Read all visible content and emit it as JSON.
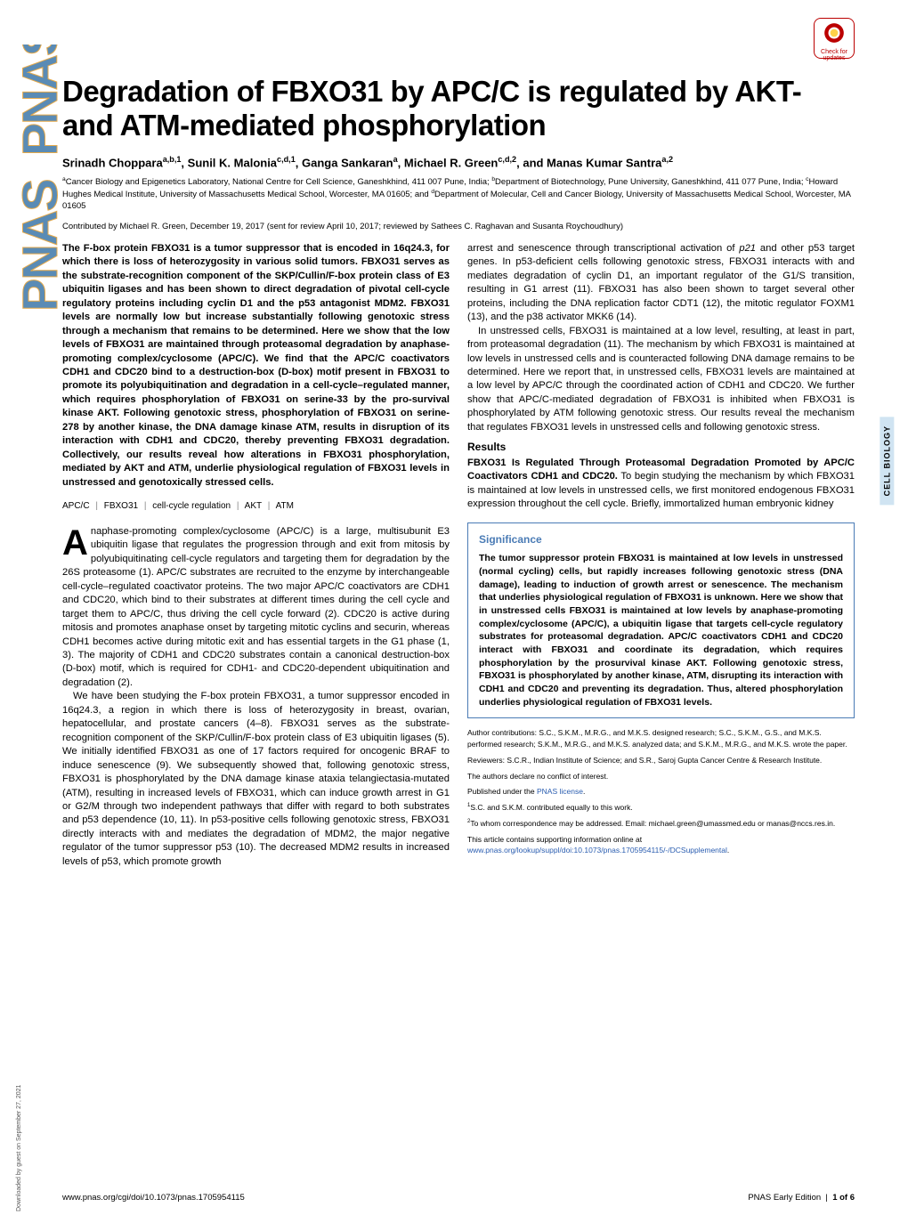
{
  "badge": {
    "line1": "Check for",
    "line2": "updates"
  },
  "title": "Degradation of FBXO31 by APC/C is regulated by AKT- and ATM-mediated phosphorylation",
  "authors_html": "Srinadh Choppara<sup>a,b,1</sup>, Sunil K. Malonia<sup>c,d,1</sup>, Ganga Sankaran<sup>a</sup>, Michael R. Green<sup>c,d,2</sup>, and Manas Kumar Santra<sup>a,2</sup>",
  "affil": "<sup>a</sup>Cancer Biology and Epigenetics Laboratory, National Centre for Cell Science, Ganeshkhind, 411 007 Pune, India; <sup>b</sup>Department of Biotechnology, Pune University, Ganeshkhind, 411 077 Pune, India; <sup>c</sup>Howard Hughes Medical Institute, University of Massachusetts Medical School, Worcester, MA 01605; and <sup>d</sup>Department of Molecular, Cell and Cancer Biology, University of Massachusetts Medical School, Worcester, MA 01605",
  "contrib": "Contributed by Michael R. Green, December 19, 2017 (sent for review April 10, 2017; reviewed by Sathees C. Raghavan and Susanta Roychoudhury)",
  "abstract": "The F-box protein FBXO31 is a tumor suppressor that is encoded in 16q24.3, for which there is loss of heterozygosity in various solid tumors. FBXO31 serves as the substrate-recognition component of the SKP/Cullin/F-box protein class of E3 ubiquitin ligases and has been shown to direct degradation of pivotal cell-cycle regulatory proteins including cyclin D1 and the p53 antagonist MDM2. FBXO31 levels are normally low but increase substantially following genotoxic stress through a mechanism that remains to be determined. Here we show that the low levels of FBXO31 are maintained through proteasomal degradation by anaphase-promoting complex/cyclosome (APC/C). We find that the APC/C coactivators CDH1 and CDC20 bind to a destruction-box (D-box) motif present in FBXO31 to promote its polyubiquitination and degradation in a cell-cycle–regulated manner, which requires phosphorylation of FBXO31 on serine-33 by the pro-survival kinase AKT. Following genotoxic stress, phosphorylation of FBXO31 on serine-278 by another kinase, the DNA damage kinase ATM, results in disruption of its interaction with CDH1 and CDC20, thereby preventing FBXO31 degradation. Collectively, our results reveal how alterations in FBXO31 phosphorylation, mediated by AKT and ATM, underlie physiological regulation of FBXO31 levels in unstressed and genotoxically stressed cells.",
  "keywords": [
    "APC/C",
    "FBXO31",
    "cell-cycle regulation",
    "AKT",
    "ATM"
  ],
  "left_body": [
    "naphase-promoting complex/cyclosome (APC/C) is a large, multisubunit E3 ubiquitin ligase that regulates the progression through and exit from mitosis by polyubiquitinating cell-cycle regulators and targeting them for degradation by the 26S proteasome (1). APC/C substrates are recruited to the enzyme by interchangeable cell-cycle–regulated coactivator proteins. The two major APC/C coactivators are CDH1 and CDC20, which bind to their substrates at different times during the cell cycle and target them to APC/C, thus driving the cell cycle forward (2). CDC20 is active during mitosis and promotes anaphase onset by targeting mitotic cyclins and securin, whereas CDH1 becomes active during mitotic exit and has essential targets in the G1 phase (1, 3). The majority of CDH1 and CDC20 substrates contain a canonical destruction-box (D-box) motif, which is required for CDH1- and CDC20-dependent ubiquitination and degradation (2).",
    "We have been studying the F-box protein FBXO31, a tumor suppressor encoded in 16q24.3, a region in which there is loss of heterozygosity in breast, ovarian, hepatocellular, and prostate cancers (4–8). FBXO31 serves as the substrate-recognition component of the SKP/Cullin/F-box protein class of E3 ubiquitin ligases (5). We initially identified FBXO31 as one of 17 factors required for oncogenic BRAF to induce senescence (9). We subsequently showed that, following genotoxic stress, FBXO31 is phosphorylated by the DNA damage kinase ataxia telangiectasia-mutated (ATM), resulting in increased levels of FBXO31, which can induce growth arrest in G1 or G2/M through two independent pathways that differ with regard to both substrates and p53 dependence (10, 11). In p53-positive cells following genotoxic stress, FBXO31 directly interacts with and mediates the degradation of MDM2, the major negative regulator of the tumor suppressor p53 (10). The decreased MDM2 results in increased levels of p53, which promote growth"
  ],
  "right_body_top": [
    "arrest and senescence through transcriptional activation of <i>p21</i> and other p53 target genes. In p53-deficient cells following genotoxic stress, FBXO31 interacts with and mediates degradation of cyclin D1, an important regulator of the G1/S transition, resulting in G1 arrest (11). FBXO31 has also been shown to target several other proteins, including the DNA replication factor CDT1 (12), the mitotic regulator FOXM1 (13), and the p38 activator MKK6 (14).",
    "In unstressed cells, FBXO31 is maintained at a low level, resulting, at least in part, from proteasomal degradation (11). The mechanism by which FBXO31 is maintained at low levels in unstressed cells and is counteracted following DNA damage remains to be determined. Here we report that, in unstressed cells, FBXO31 levels are maintained at a low level by APC/C through the coordinated action of CDH1 and CDC20. We further show that APC/C-mediated degradation of FBXO31 is inhibited when FBXO31 is phosphorylated by ATM following genotoxic stress. Our results reveal the mechanism that regulates FBXO31 levels in unstressed cells and following genotoxic stress."
  ],
  "results_heading": "Results",
  "results_sub": "FBXO31 Is Regulated Through Proteasomal Degradation Promoted by APC/C Coactivators CDH1 and CDC20.",
  "results_text": " To begin studying the mechanism by which FBXO31 is maintained at low levels in unstressed cells, we first monitored endogenous FBXO31 expression throughout the cell cycle. Briefly, immortalized human embryonic kidney",
  "sig_heading": "Significance",
  "sig_body": "The tumor suppressor protein FBXO31 is maintained at low levels in unstressed (normal cycling) cells, but rapidly increases following genotoxic stress (DNA damage), leading to induction of growth arrest or senescence. The mechanism that underlies physiological regulation of FBXO31 is unknown. Here we show that in unstressed cells FBXO31 is maintained at low levels by anaphase-promoting complex/cyclosome (APC/C), a ubiquitin ligase that targets cell-cycle regulatory substrates for proteasomal degradation. APC/C coactivators CDH1 and CDC20 interact with FBXO31 and coordinate its degradation, which requires phosphorylation by the prosurvival kinase AKT. Following genotoxic stress, FBXO31 is phosphorylated by another kinase, ATM, disrupting its interaction with CDH1 and CDC20 and preventing its degradation. Thus, altered phosphorylation underlies physiological regulation of FBXO31 levels.",
  "footnotes": [
    "Author contributions: S.C., S.K.M., M.R.G., and M.K.S. designed research; S.C., S.K.M., G.S., and M.K.S. performed research; S.K.M., M.R.G., and M.K.S. analyzed data; and S.K.M., M.R.G., and M.K.S. wrote the paper.",
    "Reviewers: S.C.R., Indian Institute of Science; and S.R., Saroj Gupta Cancer Centre & Research Institute.",
    "The authors declare no conflict of interest.",
    "Published under the <a href='#'>PNAS license</a>.",
    "<sup>1</sup>S.C. and S.K.M. contributed equally to this work.",
    "<sup>2</sup>To whom correspondence may be addressed. Email: michael.green@umassmed.edu or manas@nccs.res.in.",
    "This article contains supporting information online at <a href='#'>www.pnas.org/lookup/suppl/doi:10.1073/pnas.1705954115/-/DCSupplemental</a>."
  ],
  "side_label": "CELL BIOLOGY",
  "footer": {
    "left": "www.pnas.org/cgi/doi/10.1073/pnas.1705954115",
    "right_label": "PNAS Early Edition",
    "right_page": "1 of 6"
  },
  "download_note": "Downloaded by guest on September 27, 2021",
  "colors": {
    "link": "#2a5db0",
    "sigborder": "#4a7bb5",
    "badge": "#b00",
    "sidelabel_bg": "#d0e4f2",
    "pnas_fill": "#5a8bb5",
    "pnas_outline": "#e5a94a"
  }
}
